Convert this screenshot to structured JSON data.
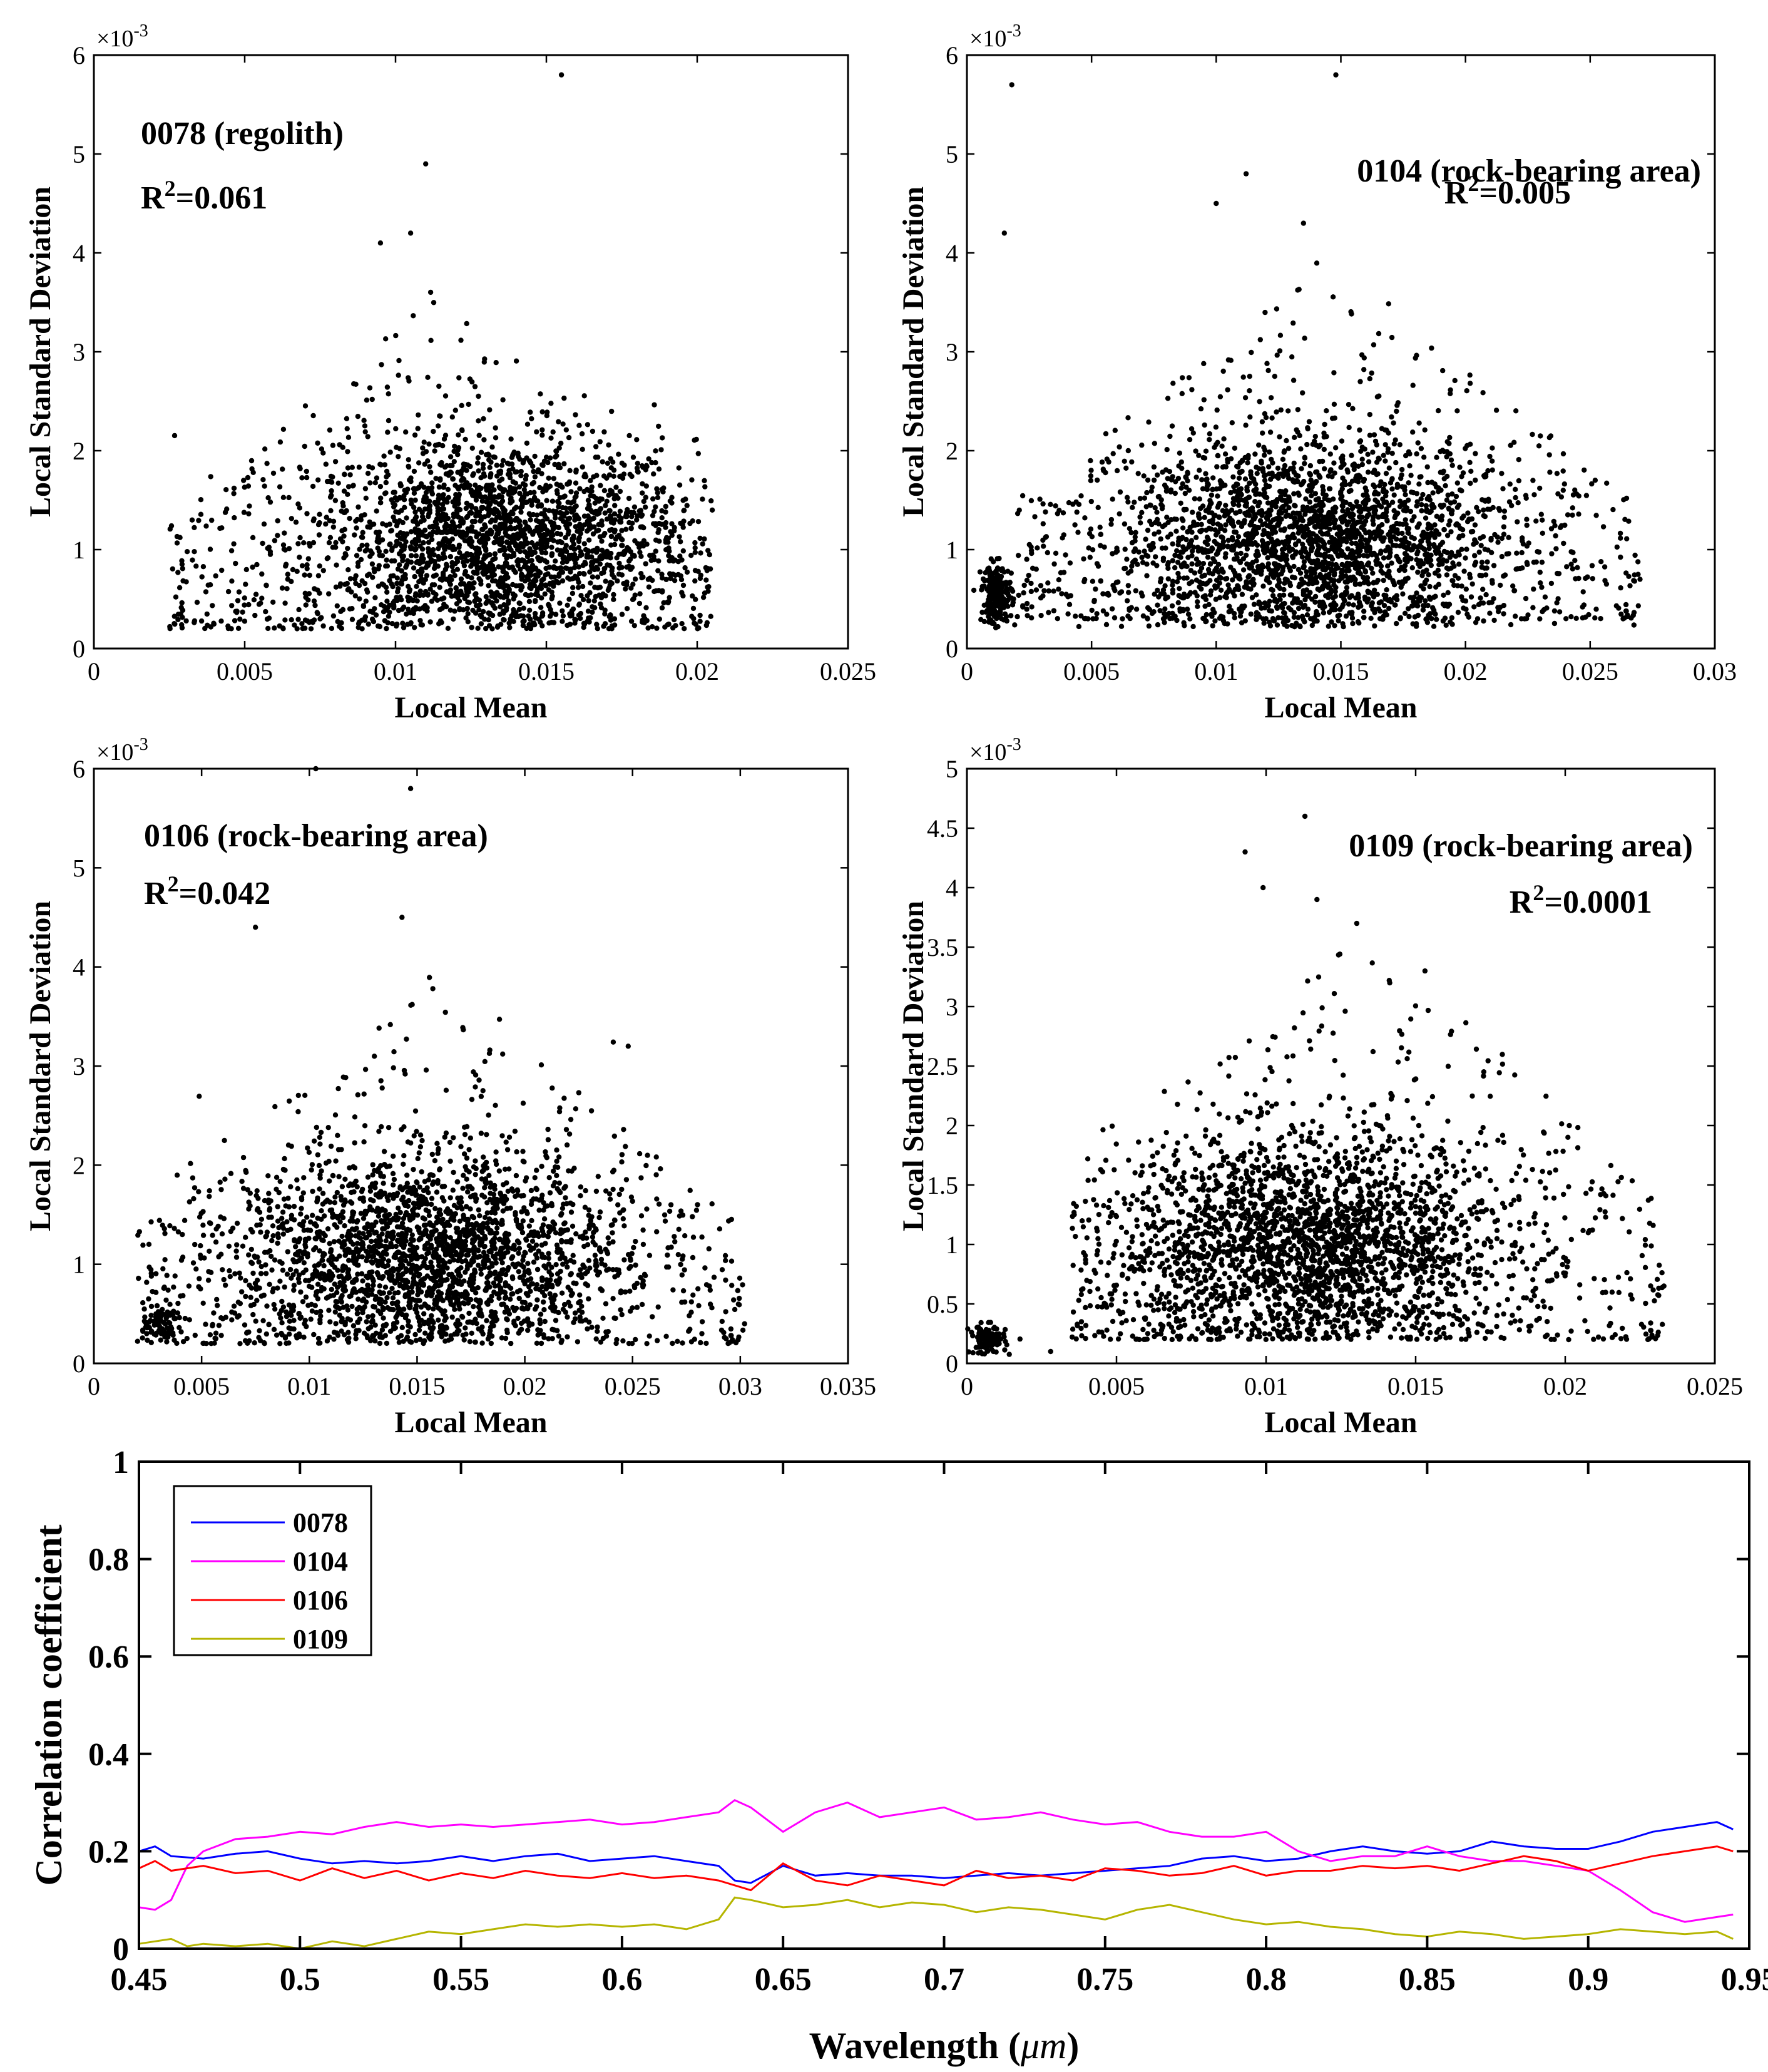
{
  "chart_data": [
    {
      "type": "scatter",
      "panel": "top-left",
      "title": "",
      "xlabel": "Local Mean",
      "ylabel": "Local Standard Deviation",
      "xlim": [
        0,
        0.025
      ],
      "ylim": [
        0,
        0.006
      ],
      "x_ticks": [
        "0",
        "0.005",
        "0.01",
        "0.015",
        "0.02",
        "0.025"
      ],
      "y_ticks": [
        "0",
        "1",
        "2",
        "3",
        "4",
        "5",
        "6"
      ],
      "y_multiplier": "×10",
      "y_exponent": "-3",
      "annotation": "0078 (regolith)",
      "r2_prefix": "R",
      "r2_sup": "2",
      "r2_value": "=0.061",
      "n_points": 2600,
      "cluster": {
        "x_mean": 0.0135,
        "x_sd": 0.0032,
        "y_mean": 0.0011,
        "y_sd": 0.0005
      },
      "sparse": {
        "x_range": [
          0.0025,
          0.0205
        ],
        "y_range": [
          0.0002,
          0.0037
        ]
      },
      "notable_points": [
        [
          0.0155,
          0.0058
        ],
        [
          0.011,
          0.0049
        ],
        [
          0.0095,
          0.0041
        ],
        [
          0.0105,
          0.0042
        ],
        [
          0.0072,
          0.0002
        ],
        [
          0.0075,
          0.0003
        ],
        [
          0.0205,
          0.0014
        ]
      ]
    },
    {
      "type": "scatter",
      "panel": "top-right",
      "title": "",
      "xlabel": "Local Mean",
      "ylabel": "Local Standard Deviation",
      "xlim": [
        0,
        0.03
      ],
      "ylim": [
        0,
        0.006
      ],
      "x_ticks": [
        "0",
        "0.005",
        "0.01",
        "0.015",
        "0.02",
        "0.025",
        "0.03"
      ],
      "y_ticks": [
        "0",
        "1",
        "2",
        "3",
        "4",
        "5",
        "6"
      ],
      "y_multiplier": "×10",
      "y_exponent": "-3",
      "annotation": "0104 (rock-bearing area)",
      "r2_prefix": "R",
      "r2_sup": "2",
      "r2_value": "=0.005",
      "n_points": 2800,
      "cluster": {
        "x_mean": 0.014,
        "x_sd": 0.004,
        "y_mean": 0.0011,
        "y_sd": 0.0005
      },
      "sparse": {
        "x_range": [
          0.002,
          0.027
        ],
        "y_range": [
          0.0003,
          0.004
        ]
      },
      "small_cluster": {
        "x_mean": 0.0012,
        "x_sd": 0.0003,
        "y_mean": 0.00055,
        "y_sd": 0.00015,
        "n": 220
      },
      "notable_points": [
        [
          0.0148,
          0.0058
        ],
        [
          0.0018,
          0.0057
        ],
        [
          0.0112,
          0.0048
        ],
        [
          0.01,
          0.0045
        ],
        [
          0.0135,
          0.0043
        ],
        [
          0.0015,
          0.0042
        ],
        [
          0.027,
          0.0007
        ]
      ]
    },
    {
      "type": "scatter",
      "panel": "middle-left",
      "title": "",
      "xlabel": "Local Mean",
      "ylabel": "Local Standard Deviation",
      "xlim": [
        0,
        0.035
      ],
      "ylim": [
        0,
        0.006
      ],
      "x_ticks": [
        "0",
        "0.005",
        "0.01",
        "0.015",
        "0.02",
        "0.025",
        "0.03",
        "0.035"
      ],
      "y_ticks": [
        "0",
        "1",
        "2",
        "3",
        "4",
        "5",
        "6"
      ],
      "y_multiplier": "×10",
      "y_exponent": "-3",
      "annotation": "0106 (rock-bearing area)",
      "r2_prefix": "R",
      "r2_sup": "2",
      "r2_value": "=0.042",
      "n_points": 2700,
      "cluster": {
        "x_mean": 0.0155,
        "x_sd": 0.0045,
        "y_mean": 0.0011,
        "y_sd": 0.0005
      },
      "sparse": {
        "x_range": [
          0.002,
          0.0302
        ],
        "y_range": [
          0.0002,
          0.004
        ]
      },
      "small_cluster": {
        "x_mean": 0.0031,
        "x_sd": 0.0004,
        "y_mean": 0.0004,
        "y_sd": 0.0001,
        "n": 70
      },
      "notable_points": [
        [
          0.0147,
          0.0058
        ],
        [
          0.0103,
          0.006
        ],
        [
          0.0075,
          0.0044
        ],
        [
          0.0143,
          0.0045
        ],
        [
          0.0248,
          0.0032
        ],
        [
          0.0302,
          0.0004
        ]
      ]
    },
    {
      "type": "scatter",
      "panel": "middle-right",
      "title": "",
      "xlabel": "Local Mean",
      "ylabel": "Local Standard Deviation",
      "xlim": [
        0,
        0.025
      ],
      "ylim": [
        0,
        0.005
      ],
      "x_ticks": [
        "0",
        "0.005",
        "0.01",
        "0.015",
        "0.02",
        "0.025"
      ],
      "y_ticks": [
        "0",
        "0.5",
        "1",
        "1.5",
        "2",
        "2.5",
        "3",
        "3.5",
        "4",
        "4.5",
        "5"
      ],
      "y_multiplier": "×10",
      "y_exponent": "-3",
      "annotation": "0109 (rock-bearing area)",
      "r2_prefix": "R",
      "r2_sup": "2",
      "r2_value": "=0.0001",
      "n_points": 2800,
      "cluster": {
        "x_mean": 0.0115,
        "x_sd": 0.0033,
        "y_mean": 0.001,
        "y_sd": 0.00045
      },
      "sparse": {
        "x_range": [
          0.0035,
          0.0233
        ],
        "y_range": [
          0.0002,
          0.0038
        ]
      },
      "small_cluster": {
        "x_mean": 0.0007,
        "x_sd": 0.0003,
        "y_mean": 0.0002,
        "y_sd": 6e-05,
        "n": 110
      },
      "notable_points": [
        [
          0.0113,
          0.0046
        ],
        [
          0.0093,
          0.0043
        ],
        [
          0.0099,
          0.004
        ],
        [
          0.0117,
          0.0039
        ],
        [
          0.0233,
          0.00065
        ],
        [
          0.0028,
          0.0001
        ]
      ]
    },
    {
      "type": "line",
      "panel": "bottom",
      "title": "",
      "xlabel_main": "Wavelength (",
      "xlabel_unit": "μm",
      "xlabel_end": ")",
      "ylabel": "Correlation coefficient",
      "xlim": [
        0.45,
        0.95
      ],
      "ylim": [
        0,
        1
      ],
      "x_ticks": [
        "0.45",
        "0.5",
        "0.55",
        "0.6",
        "0.65",
        "0.7",
        "0.75",
        "0.8",
        "0.85",
        "0.9",
        "0.95"
      ],
      "y_ticks": [
        "0",
        "0.2",
        "0.4",
        "0.6",
        "0.8",
        "1"
      ],
      "legend_position": "top-left",
      "series": [
        {
          "name": "0078",
          "color": "#0000ff",
          "x": [
            0.45,
            0.455,
            0.46,
            0.47,
            0.48,
            0.49,
            0.5,
            0.51,
            0.52,
            0.53,
            0.54,
            0.55,
            0.56,
            0.57,
            0.58,
            0.59,
            0.6,
            0.61,
            0.62,
            0.63,
            0.635,
            0.64,
            0.65,
            0.66,
            0.67,
            0.68,
            0.69,
            0.7,
            0.71,
            0.72,
            0.73,
            0.74,
            0.75,
            0.76,
            0.77,
            0.78,
            0.79,
            0.8,
            0.81,
            0.82,
            0.83,
            0.84,
            0.85,
            0.86,
            0.87,
            0.88,
            0.89,
            0.9,
            0.91,
            0.92,
            0.93,
            0.94,
            0.945
          ],
          "y": [
            0.2,
            0.21,
            0.19,
            0.185,
            0.195,
            0.2,
            0.185,
            0.175,
            0.18,
            0.175,
            0.18,
            0.19,
            0.18,
            0.19,
            0.195,
            0.18,
            0.185,
            0.19,
            0.18,
            0.17,
            0.14,
            0.135,
            0.17,
            0.15,
            0.155,
            0.15,
            0.15,
            0.145,
            0.15,
            0.155,
            0.15,
            0.155,
            0.16,
            0.165,
            0.17,
            0.185,
            0.19,
            0.18,
            0.185,
            0.2,
            0.21,
            0.2,
            0.195,
            0.2,
            0.22,
            0.21,
            0.205,
            0.205,
            0.22,
            0.24,
            0.25,
            0.26,
            0.245
          ]
        },
        {
          "name": "0104",
          "color": "#ff00ff",
          "x": [
            0.45,
            0.455,
            0.46,
            0.465,
            0.47,
            0.48,
            0.49,
            0.5,
            0.51,
            0.52,
            0.53,
            0.54,
            0.55,
            0.56,
            0.57,
            0.58,
            0.59,
            0.6,
            0.61,
            0.62,
            0.63,
            0.635,
            0.64,
            0.65,
            0.66,
            0.67,
            0.68,
            0.69,
            0.7,
            0.71,
            0.72,
            0.73,
            0.74,
            0.75,
            0.76,
            0.77,
            0.78,
            0.79,
            0.8,
            0.81,
            0.82,
            0.83,
            0.84,
            0.85,
            0.86,
            0.87,
            0.88,
            0.89,
            0.9,
            0.91,
            0.92,
            0.93,
            0.94,
            0.945
          ],
          "y": [
            0.085,
            0.08,
            0.1,
            0.17,
            0.2,
            0.225,
            0.23,
            0.24,
            0.235,
            0.25,
            0.26,
            0.25,
            0.255,
            0.25,
            0.255,
            0.26,
            0.265,
            0.255,
            0.26,
            0.27,
            0.28,
            0.305,
            0.29,
            0.24,
            0.28,
            0.3,
            0.27,
            0.28,
            0.29,
            0.265,
            0.27,
            0.28,
            0.265,
            0.255,
            0.26,
            0.24,
            0.23,
            0.23,
            0.24,
            0.2,
            0.18,
            0.19,
            0.19,
            0.21,
            0.19,
            0.18,
            0.18,
            0.17,
            0.16,
            0.12,
            0.075,
            0.055,
            0.065,
            0.07
          ]
        },
        {
          "name": "0106",
          "color": "#ff0000",
          "x": [
            0.45,
            0.455,
            0.46,
            0.47,
            0.48,
            0.49,
            0.5,
            0.51,
            0.52,
            0.53,
            0.54,
            0.55,
            0.56,
            0.57,
            0.58,
            0.59,
            0.6,
            0.61,
            0.62,
            0.63,
            0.64,
            0.65,
            0.66,
            0.67,
            0.68,
            0.69,
            0.7,
            0.71,
            0.72,
            0.73,
            0.74,
            0.75,
            0.76,
            0.77,
            0.78,
            0.79,
            0.8,
            0.81,
            0.82,
            0.83,
            0.84,
            0.85,
            0.86,
            0.87,
            0.88,
            0.89,
            0.9,
            0.91,
            0.92,
            0.93,
            0.94,
            0.945
          ],
          "y": [
            0.165,
            0.18,
            0.16,
            0.17,
            0.155,
            0.16,
            0.14,
            0.165,
            0.145,
            0.16,
            0.14,
            0.155,
            0.145,
            0.16,
            0.15,
            0.145,
            0.155,
            0.145,
            0.15,
            0.14,
            0.12,
            0.175,
            0.14,
            0.13,
            0.15,
            0.14,
            0.13,
            0.16,
            0.145,
            0.15,
            0.14,
            0.165,
            0.16,
            0.15,
            0.155,
            0.17,
            0.15,
            0.16,
            0.16,
            0.17,
            0.165,
            0.17,
            0.16,
            0.175,
            0.19,
            0.18,
            0.16,
            0.175,
            0.19,
            0.2,
            0.21,
            0.2
          ]
        },
        {
          "name": "0109",
          "color": "#b5b500",
          "x": [
            0.45,
            0.455,
            0.46,
            0.465,
            0.47,
            0.48,
            0.49,
            0.5,
            0.51,
            0.52,
            0.53,
            0.54,
            0.55,
            0.56,
            0.57,
            0.58,
            0.59,
            0.6,
            0.61,
            0.62,
            0.63,
            0.635,
            0.64,
            0.65,
            0.66,
            0.67,
            0.68,
            0.69,
            0.7,
            0.71,
            0.72,
            0.73,
            0.74,
            0.75,
            0.76,
            0.77,
            0.78,
            0.79,
            0.8,
            0.81,
            0.82,
            0.83,
            0.84,
            0.85,
            0.86,
            0.87,
            0.88,
            0.89,
            0.9,
            0.91,
            0.92,
            0.93,
            0.94,
            0.945
          ],
          "y": [
            0.01,
            0.015,
            0.02,
            0.005,
            0.01,
            0.005,
            0.01,
            0.0,
            0.015,
            0.005,
            0.02,
            0.035,
            0.03,
            0.04,
            0.05,
            0.045,
            0.05,
            0.045,
            0.05,
            0.04,
            0.06,
            0.105,
            0.1,
            0.085,
            0.09,
            0.1,
            0.085,
            0.095,
            0.09,
            0.075,
            0.085,
            0.08,
            0.07,
            0.06,
            0.08,
            0.09,
            0.075,
            0.06,
            0.05,
            0.055,
            0.045,
            0.04,
            0.03,
            0.025,
            0.035,
            0.03,
            0.02,
            0.025,
            0.03,
            0.04,
            0.035,
            0.03,
            0.035,
            0.02
          ]
        }
      ]
    }
  ]
}
